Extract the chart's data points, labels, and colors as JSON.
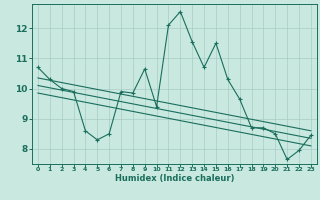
{
  "x_main": [
    0,
    1,
    2,
    3,
    4,
    5,
    6,
    7,
    8,
    9,
    10,
    11,
    12,
    13,
    14,
    15,
    16,
    17,
    18,
    19,
    20,
    21,
    22,
    23
  ],
  "y_main": [
    10.7,
    10.3,
    10.0,
    9.9,
    8.6,
    8.3,
    8.5,
    9.9,
    9.85,
    10.65,
    9.4,
    12.1,
    12.55,
    11.55,
    10.7,
    11.5,
    10.3,
    9.65,
    8.7,
    8.7,
    8.5,
    7.65,
    7.95,
    8.45
  ],
  "bg_color": "#c8e8e0",
  "line_color": "#1a6e5c",
  "marker_color": "#1a6e5c",
  "grid_color": "#a8ccc4",
  "axis_color": "#1a6e5c",
  "xlabel": "Humidex (Indice chaleur)",
  "ylim": [
    7.5,
    12.8
  ],
  "xlim": [
    -0.5,
    23.5
  ],
  "yticks": [
    8,
    9,
    10,
    11,
    12
  ],
  "xticks": [
    0,
    1,
    2,
    3,
    4,
    5,
    6,
    7,
    8,
    9,
    10,
    11,
    12,
    13,
    14,
    15,
    16,
    17,
    18,
    19,
    20,
    21,
    22,
    23
  ],
  "regression_lines": [
    {
      "x0": 0,
      "y0": 10.35,
      "x1": 23,
      "y1": 8.6
    },
    {
      "x0": 0,
      "y0": 10.1,
      "x1": 23,
      "y1": 8.35
    },
    {
      "x0": 0,
      "y0": 9.85,
      "x1": 23,
      "y1": 8.1
    }
  ]
}
